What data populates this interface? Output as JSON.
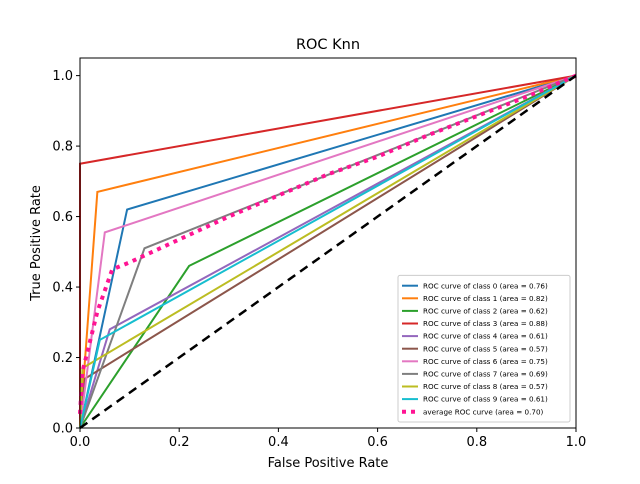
{
  "chart_data": {
    "type": "line",
    "title": "ROC Knn",
    "xlabel": "False Positive Rate",
    "ylabel": "True Positive Rate",
    "xlim": [
      0,
      1
    ],
    "ylim": [
      0,
      1.05
    ],
    "xticks": [
      0.0,
      0.2,
      0.4,
      0.6,
      0.8,
      1.0
    ],
    "yticks": [
      0.0,
      0.2,
      0.4,
      0.6,
      0.8,
      1.0
    ],
    "xtick_labels": [
      "0.0",
      "0.2",
      "0.4",
      "0.6",
      "0.8",
      "1.0"
    ],
    "ytick_labels": [
      "0.0",
      "0.2",
      "0.4",
      "0.6",
      "0.8",
      "1.0"
    ],
    "grid": false,
    "legend_position": "lower-right",
    "series": [
      {
        "name": "ROC curve of class 0 (area = 0.76)",
        "color": "#1f77b4",
        "style": "solid",
        "x": [
          0,
          0.095,
          1
        ],
        "y": [
          0,
          0.62,
          1
        ]
      },
      {
        "name": "ROC curve of class 1 (area = 0.82)",
        "color": "#ff7f0e",
        "style": "solid",
        "x": [
          0,
          0.035,
          1
        ],
        "y": [
          0,
          0.67,
          1
        ]
      },
      {
        "name": "ROC curve of class 2 (area = 0.62)",
        "color": "#2ca02c",
        "style": "solid",
        "x": [
          0,
          0.22,
          1
        ],
        "y": [
          0,
          0.46,
          1
        ]
      },
      {
        "name": "ROC curve of class 3 (area = 0.88)",
        "color": "#d62728",
        "style": "solid",
        "x": [
          0,
          0,
          1
        ],
        "y": [
          0,
          0.75,
          1
        ]
      },
      {
        "name": "ROC curve of class 4 (area = 0.61)",
        "color": "#9467bd",
        "style": "solid",
        "x": [
          0,
          0.06,
          1
        ],
        "y": [
          0,
          0.28,
          1
        ]
      },
      {
        "name": "ROC curve of class 5 (area = 0.57)",
        "color": "#8c564b",
        "style": "solid",
        "x": [
          0,
          0.01,
          1
        ],
        "y": [
          0,
          0.14,
          1
        ]
      },
      {
        "name": "ROC curve of class 6 (area = 0.75)",
        "color": "#e377c2",
        "style": "solid",
        "x": [
          0,
          0.05,
          1
        ],
        "y": [
          0,
          0.555,
          1
        ]
      },
      {
        "name": "ROC curve of class 7 (area = 0.69)",
        "color": "#7f7f7f",
        "style": "solid",
        "x": [
          0,
          0.13,
          1
        ],
        "y": [
          0,
          0.51,
          1
        ]
      },
      {
        "name": "ROC curve of class 8 (area = 0.57)",
        "color": "#bcbd22",
        "style": "solid",
        "x": [
          0,
          0.005,
          1
        ],
        "y": [
          0,
          0.17,
          1
        ]
      },
      {
        "name": "ROC curve of class 9 (area = 0.61)",
        "color": "#17becf",
        "style": "solid",
        "x": [
          0,
          0.04,
          1
        ],
        "y": [
          0,
          0.25,
          1
        ]
      },
      {
        "name": "average ROC curve (area = 0.70)",
        "color": "#ff1493",
        "style": "dotted",
        "x": [
          0,
          0.005,
          0.035,
          0.065,
          0.1,
          0.2,
          0.3,
          0.4,
          0.5,
          0.6,
          0.7,
          0.8,
          0.9,
          1.0
        ],
        "y": [
          0.04,
          0.16,
          0.33,
          0.45,
          0.47,
          0.535,
          0.6,
          0.66,
          0.72,
          0.77,
          0.83,
          0.885,
          0.94,
          1.0
        ]
      }
    ],
    "reference_line": {
      "x": [
        0,
        1
      ],
      "y": [
        0,
        1
      ],
      "color": "#000000",
      "style": "dashed"
    }
  }
}
